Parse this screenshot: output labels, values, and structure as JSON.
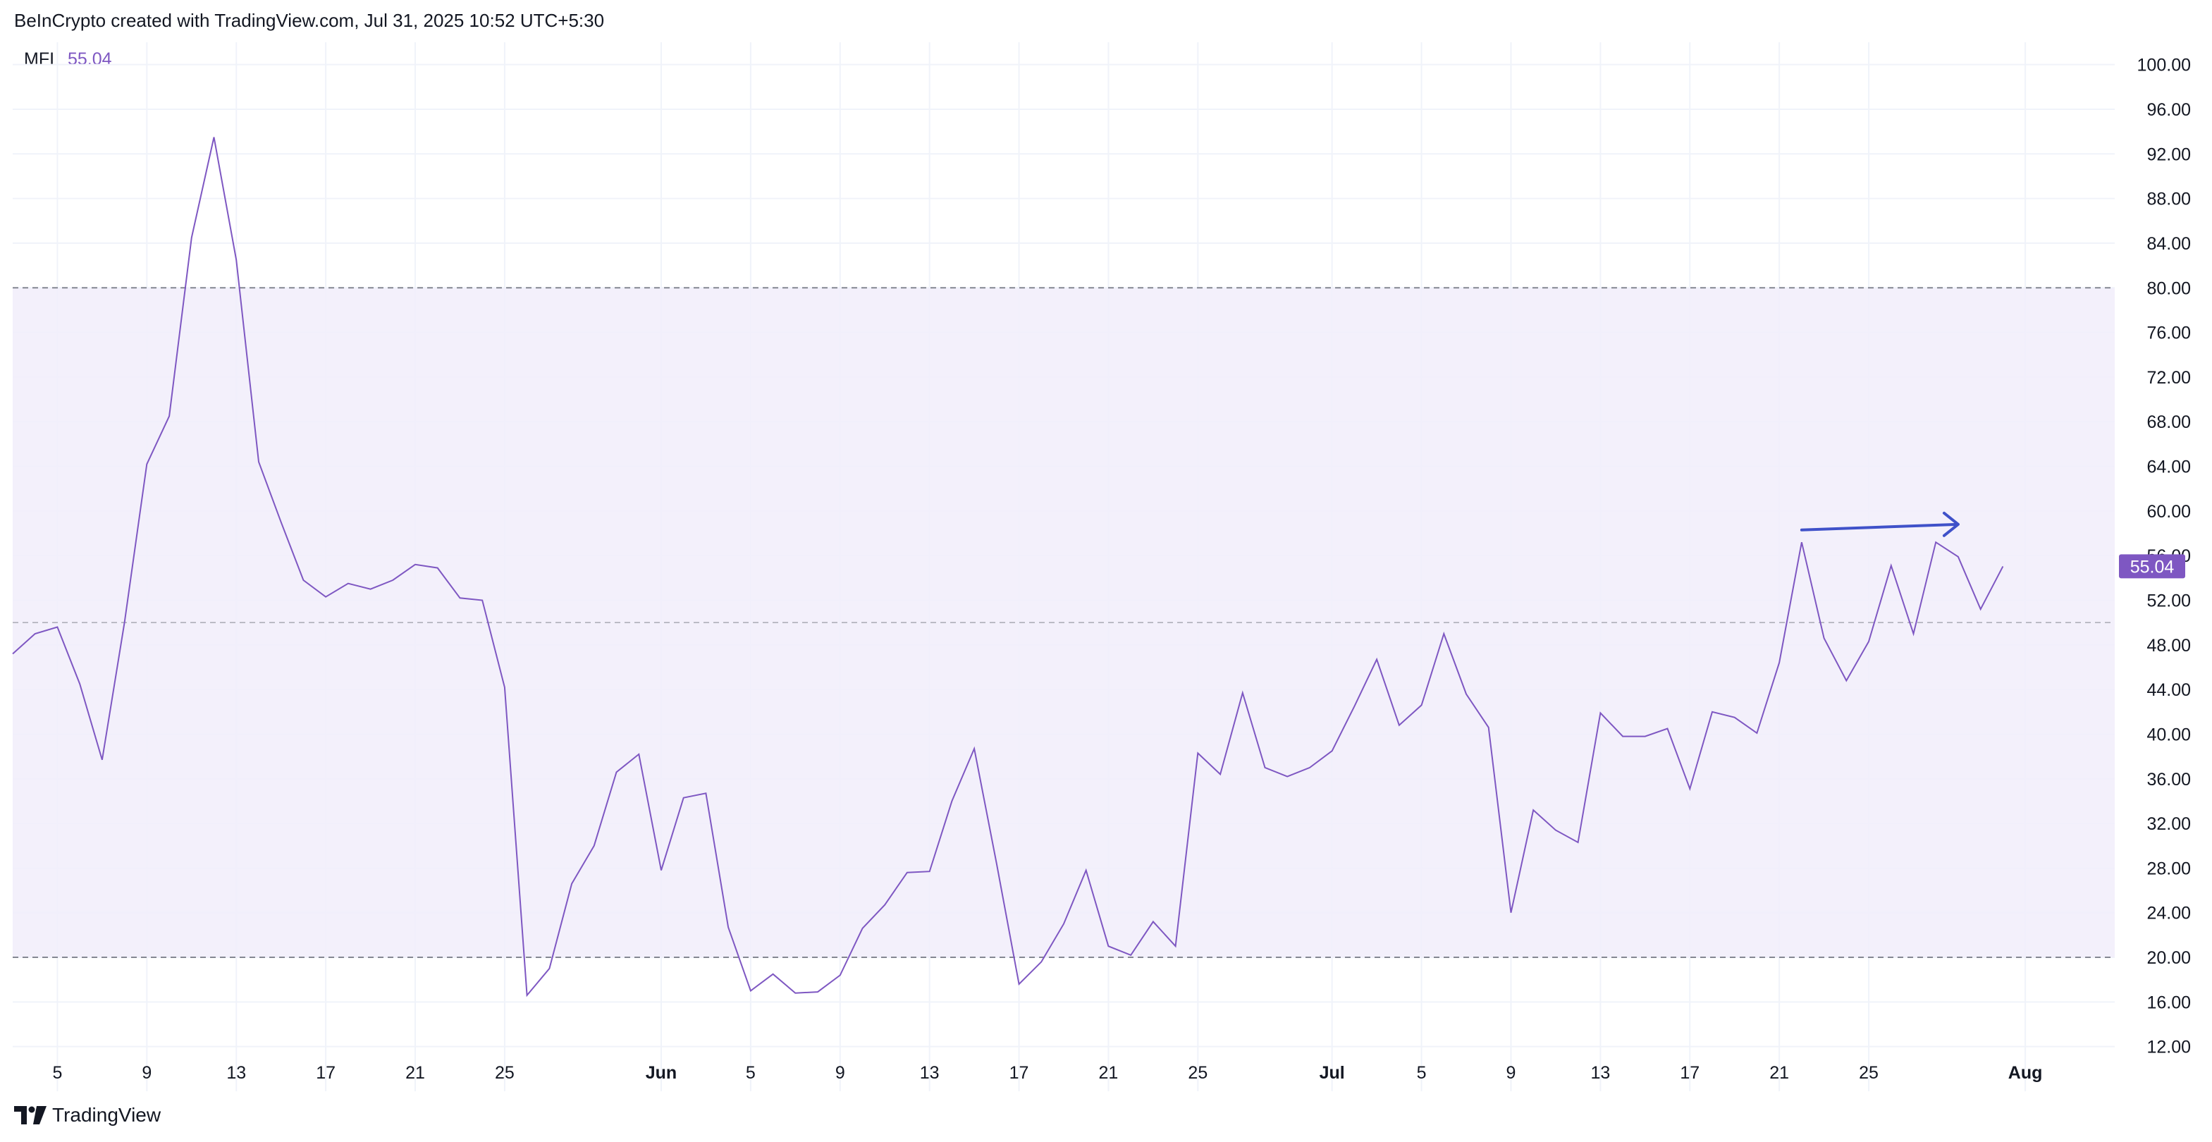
{
  "header": {
    "text": "BeInCrypto created with TradingView.com, Jul 31, 2025 10:52 UTC+5:30"
  },
  "legend": {
    "name": "MFI",
    "value": "55.04"
  },
  "footer": {
    "brand": "TradingView"
  },
  "colors": {
    "line": "#7e57c2",
    "band": "#f1edfa",
    "arrow": "#3f51c9",
    "grid": "#f0f3fa",
    "dashed": "#787b86"
  },
  "chart_data": {
    "type": "line",
    "title": "",
    "xlabel": "",
    "ylabel": "",
    "ylim": [
      8,
      102
    ],
    "yticks": [
      12,
      16,
      20,
      24,
      28,
      32,
      36,
      40,
      44,
      48,
      52,
      56,
      60,
      64,
      68,
      72,
      76,
      80,
      84,
      88,
      92,
      96,
      100
    ],
    "ytick_labels": [
      "12.00",
      "16.00",
      "20.00",
      "24.00",
      "28.00",
      "32.00",
      "36.00",
      "40.00",
      "44.00",
      "48.00",
      "52.00",
      "56.00",
      "60.00",
      "64.00",
      "68.00",
      "72.00",
      "76.00",
      "80.00",
      "84.00",
      "88.00",
      "92.00",
      "96.00",
      "100.00"
    ],
    "xlim": [
      "2025-05-03",
      "2025-08-05"
    ],
    "xticks": [
      {
        "date": "2025-05-05",
        "label": "5"
      },
      {
        "date": "2025-05-09",
        "label": "9"
      },
      {
        "date": "2025-05-13",
        "label": "13"
      },
      {
        "date": "2025-05-17",
        "label": "17"
      },
      {
        "date": "2025-05-21",
        "label": "21"
      },
      {
        "date": "2025-05-25",
        "label": "25"
      },
      {
        "date": "2025-06-01",
        "label": "Jun",
        "bold": true
      },
      {
        "date": "2025-06-05",
        "label": "5"
      },
      {
        "date": "2025-06-09",
        "label": "9"
      },
      {
        "date": "2025-06-13",
        "label": "13"
      },
      {
        "date": "2025-06-17",
        "label": "17"
      },
      {
        "date": "2025-06-21",
        "label": "21"
      },
      {
        "date": "2025-06-25",
        "label": "25"
      },
      {
        "date": "2025-07-01",
        "label": "Jul",
        "bold": true
      },
      {
        "date": "2025-07-05",
        "label": "5"
      },
      {
        "date": "2025-07-09",
        "label": "9"
      },
      {
        "date": "2025-07-13",
        "label": "13"
      },
      {
        "date": "2025-07-17",
        "label": "17"
      },
      {
        "date": "2025-07-21",
        "label": "21"
      },
      {
        "date": "2025-07-25",
        "label": "25"
      },
      {
        "date": "2025-08-01",
        "label": "Aug",
        "bold": true
      }
    ],
    "grid": true,
    "band": {
      "upper": 80,
      "lower": 20,
      "middle": 50
    },
    "series": [
      {
        "name": "MFI",
        "x": [
          "2025-05-03",
          "2025-05-04",
          "2025-05-05",
          "2025-05-06",
          "2025-05-07",
          "2025-05-08",
          "2025-05-09",
          "2025-05-10",
          "2025-05-11",
          "2025-05-12",
          "2025-05-13",
          "2025-05-14",
          "2025-05-15",
          "2025-05-16",
          "2025-05-17",
          "2025-05-18",
          "2025-05-19",
          "2025-05-20",
          "2025-05-21",
          "2025-05-22",
          "2025-05-23",
          "2025-05-24",
          "2025-05-25",
          "2025-05-26",
          "2025-05-27",
          "2025-05-28",
          "2025-05-29",
          "2025-05-30",
          "2025-05-31",
          "2025-06-01",
          "2025-06-02",
          "2025-06-03",
          "2025-06-04",
          "2025-06-05",
          "2025-06-06",
          "2025-06-07",
          "2025-06-08",
          "2025-06-09",
          "2025-06-10",
          "2025-06-11",
          "2025-06-12",
          "2025-06-13",
          "2025-06-14",
          "2025-06-15",
          "2025-06-16",
          "2025-06-17",
          "2025-06-18",
          "2025-06-19",
          "2025-06-20",
          "2025-06-21",
          "2025-06-22",
          "2025-06-23",
          "2025-06-24",
          "2025-06-25",
          "2025-06-26",
          "2025-06-27",
          "2025-06-28",
          "2025-06-29",
          "2025-06-30",
          "2025-07-01",
          "2025-07-02",
          "2025-07-03",
          "2025-07-04",
          "2025-07-05",
          "2025-07-06",
          "2025-07-07",
          "2025-07-08",
          "2025-07-09",
          "2025-07-10",
          "2025-07-11",
          "2025-07-12",
          "2025-07-13",
          "2025-07-14",
          "2025-07-15",
          "2025-07-16",
          "2025-07-17",
          "2025-07-18",
          "2025-07-19",
          "2025-07-20",
          "2025-07-21",
          "2025-07-22",
          "2025-07-23",
          "2025-07-24",
          "2025-07-25",
          "2025-07-26",
          "2025-07-27",
          "2025-07-28",
          "2025-07-29",
          "2025-07-30",
          "2025-07-31"
        ],
        "values": [
          47.2,
          49.0,
          49.6,
          44.5,
          37.7,
          50.0,
          64.2,
          68.5,
          84.5,
          93.5,
          82.5,
          64.4,
          59.0,
          53.8,
          52.3,
          53.5,
          53.0,
          53.8,
          55.2,
          54.9,
          52.2,
          52.0,
          44.2,
          16.6,
          19.0,
          26.6,
          30.0,
          36.6,
          38.2,
          27.8,
          34.3,
          34.7,
          22.7,
          17.0,
          18.5,
          16.8,
          16.9,
          18.4,
          22.6,
          24.7,
          27.6,
          27.7,
          34.0,
          38.7,
          28.4,
          17.6,
          19.6,
          23.0,
          27.8,
          21.0,
          20.2,
          23.2,
          21.0,
          38.3,
          36.4,
          43.7,
          37.0,
          36.2,
          37.0,
          38.5,
          42.5,
          46.7,
          40.8,
          42.6,
          49.0,
          43.6,
          40.6,
          24.0,
          33.2,
          31.4,
          30.3,
          41.9,
          39.8,
          39.8,
          40.5,
          35.1,
          42.0,
          41.5,
          40.1,
          46.4,
          57.2,
          48.6,
          44.8,
          48.3,
          55.1,
          49.0,
          57.2,
          55.9,
          51.2,
          55.04
        ]
      }
    ],
    "annotations": [
      {
        "type": "arrow",
        "start": {
          "x": "2025-07-22",
          "y": 58.3
        },
        "end": {
          "x": "2025-07-29",
          "y": 58.8
        }
      }
    ],
    "last_value_label": "55.04"
  }
}
